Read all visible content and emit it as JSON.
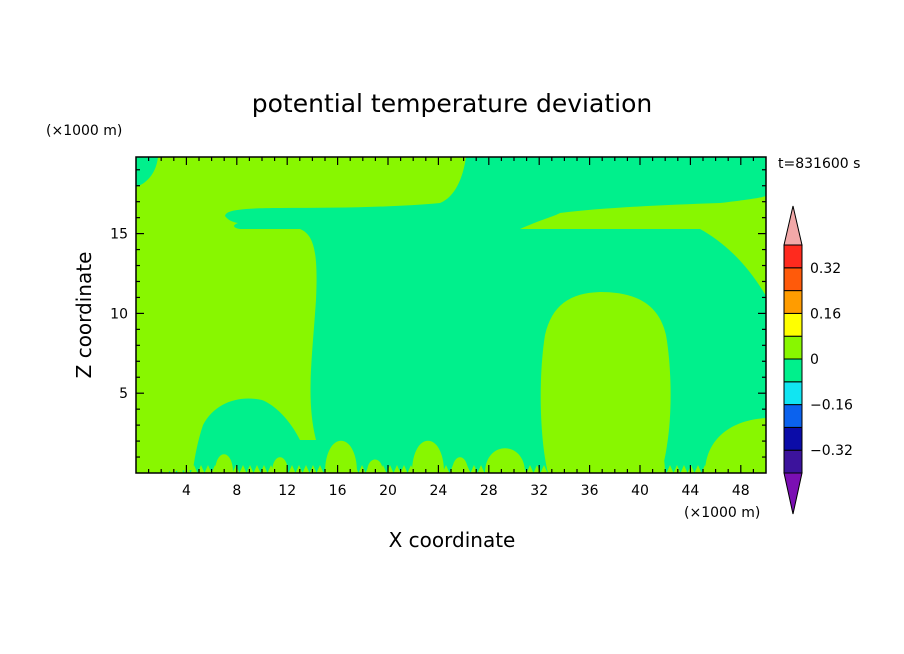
{
  "chart_data": {
    "type": "heatmap",
    "title": "potential temperature deviation",
    "xlabel": "X coordinate",
    "ylabel": "Z coordinate",
    "x_unit": "(×1000 m)",
    "y_unit": "(×1000 m)",
    "time_label": "t=831600 s",
    "xlim": [
      0,
      50
    ],
    "ylim": [
      0,
      19.8
    ],
    "x_ticks": [
      4,
      8,
      12,
      16,
      20,
      24,
      28,
      32,
      36,
      40,
      44,
      48
    ],
    "y_ticks": [
      5,
      10,
      15
    ],
    "colorbar": {
      "levels": [
        -0.48,
        -0.4,
        -0.32,
        -0.24,
        -0.16,
        -0.08,
        0,
        0.08,
        0.16,
        0.24,
        0.32,
        0.4
      ],
      "labeled_values": [
        "0.32",
        "0.16",
        "0",
        "−0.16",
        "−0.32"
      ],
      "colors_bottom_to_top": [
        "#7b0fb3",
        "#3c139c",
        "#0b0ca8",
        "#0b62ee",
        "#11e5f2",
        "#00f08c",
        "#88f700",
        "#ffff00",
        "#ff9c00",
        "#ff5a0a",
        "#ff2a1e",
        "#f2a8a8"
      ]
    },
    "field_colors": {
      "background": "#00f08c",
      "positive": "#88f700"
    },
    "positive_regions_outline": [
      {
        "region": "upper-left block",
        "x": [
          0,
          14.2
        ],
        "z": [
          0.5,
          19.8
        ]
      },
      {
        "region": "top band",
        "x": [
          2.5,
          26
        ],
        "z": [
          16.3,
          19.8
        ]
      },
      {
        "region": "upper-right layer",
        "x": [
          30,
          50
        ],
        "z": [
          15.4,
          17.6
        ]
      },
      {
        "region": "right dome",
        "x": [
          32.5,
          42.5
        ],
        "z": [
          0.3,
          11.3
        ]
      },
      {
        "region": "bottom-left dome",
        "x": [
          4.7,
          9.8
        ],
        "z": [
          0.3,
          4.8
        ]
      }
    ]
  }
}
